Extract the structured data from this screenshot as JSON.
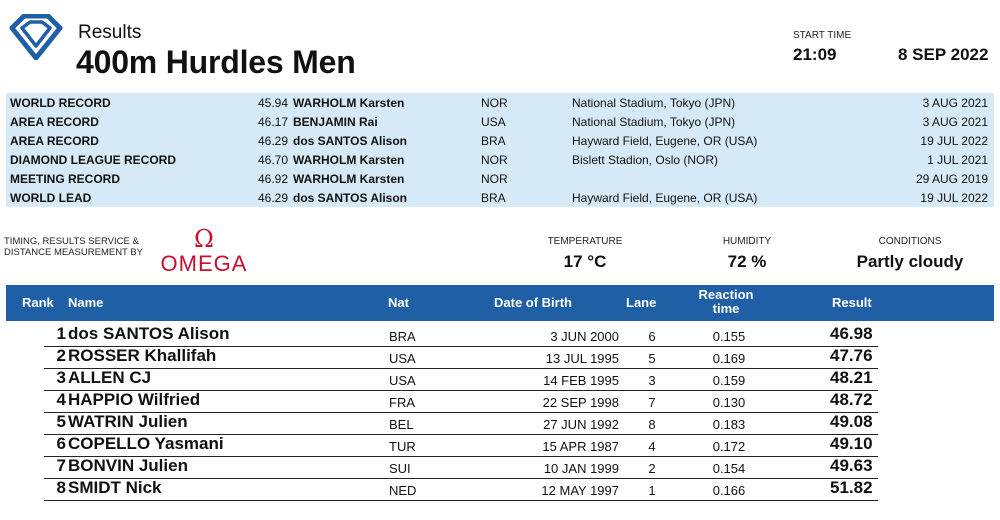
{
  "header": {
    "subtitle": "Results",
    "title": "400m Hurdles Men",
    "start_time_label": "START TIME",
    "start_time": "21:09",
    "date": "8 SEP 2022",
    "logo_icon": "diamond-league-logo-icon",
    "brand_color": "#1f5fa6"
  },
  "records": [
    {
      "type": "WORLD RECORD",
      "mark": "45.94",
      "name": "WARHOLM Karsten",
      "nat": "NOR",
      "venue": "National Stadium, Tokyo (JPN)",
      "date": "3 AUG 2021"
    },
    {
      "type": "AREA RECORD",
      "mark": "46.17",
      "name": "BENJAMIN Rai",
      "nat": "USA",
      "venue": "National Stadium, Tokyo (JPN)",
      "date": "3 AUG 2021"
    },
    {
      "type": "AREA RECORD",
      "mark": "46.29",
      "name": "dos SANTOS Alison",
      "nat": "BRA",
      "venue": "Hayward Field, Eugene, OR (USA)",
      "date": "19 JUL 2022"
    },
    {
      "type": "DIAMOND LEAGUE RECORD",
      "mark": "46.70",
      "name": "WARHOLM Karsten",
      "nat": "NOR",
      "venue": "Bislett Stadion, Oslo (NOR)",
      "date": "1 JUL 2021"
    },
    {
      "type": "MEETING RECORD",
      "mark": "46.92",
      "name": "WARHOLM Karsten",
      "nat": "NOR",
      "venue": "",
      "date": "29 AUG 2019"
    },
    {
      "type": "WORLD LEAD",
      "mark": "46.29",
      "name": "dos SANTOS Alison",
      "nat": "BRA",
      "venue": "Hayward Field, Eugene, OR (USA)",
      "date": "19 JUL 2022"
    }
  ],
  "timing": {
    "line1": "TIMING, RESULTS SERVICE &",
    "line2": "DISTANCE MEASUREMENT BY",
    "brand_symbol": "Ω",
    "brand": "OMEGA",
    "brand_color": "#c8102e"
  },
  "conditions": {
    "temperature_label": "TEMPERATURE",
    "temperature": "17 °C",
    "humidity_label": "HUMIDITY",
    "humidity": "72 %",
    "conditions_label": "CONDITIONS",
    "conditions": "Partly cloudy"
  },
  "table": {
    "headers": {
      "rank": "Rank",
      "name": "Name",
      "nat": "Nat",
      "dob": "Date of Birth",
      "lane": "Lane",
      "reaction_1": "Reaction",
      "reaction_2": "time",
      "result": "Result"
    },
    "rows": [
      {
        "rank": "1",
        "name": "dos SANTOS Alison",
        "nat": "BRA",
        "dob": "3 JUN 2000",
        "lane": "6",
        "reaction": "0.155",
        "result": "46.98"
      },
      {
        "rank": "2",
        "name": "ROSSER Khallifah",
        "nat": "USA",
        "dob": "13 JUL 1995",
        "lane": "5",
        "reaction": "0.169",
        "result": "47.76"
      },
      {
        "rank": "3",
        "name": "ALLEN CJ",
        "nat": "USA",
        "dob": "14 FEB 1995",
        "lane": "3",
        "reaction": "0.159",
        "result": "48.21"
      },
      {
        "rank": "4",
        "name": "HAPPIO Wilfried",
        "nat": "FRA",
        "dob": "22 SEP 1998",
        "lane": "7",
        "reaction": "0.130",
        "result": "48.72"
      },
      {
        "rank": "5",
        "name": "WATRIN Julien",
        "nat": "BEL",
        "dob": "27 JUN 1992",
        "lane": "8",
        "reaction": "0.183",
        "result": "49.08"
      },
      {
        "rank": "6",
        "name": "COPELLO Yasmani",
        "nat": "TUR",
        "dob": "15 APR 1987",
        "lane": "4",
        "reaction": "0.172",
        "result": "49.10"
      },
      {
        "rank": "7",
        "name": "BONVIN Julien",
        "nat": "SUI",
        "dob": "10 JAN 1999",
        "lane": "2",
        "reaction": "0.154",
        "result": "49.63"
      },
      {
        "rank": "8",
        "name": "SMIDT Nick",
        "nat": "NED",
        "dob": "12 MAY 1997",
        "lane": "1",
        "reaction": "0.166",
        "result": "51.82"
      }
    ]
  }
}
